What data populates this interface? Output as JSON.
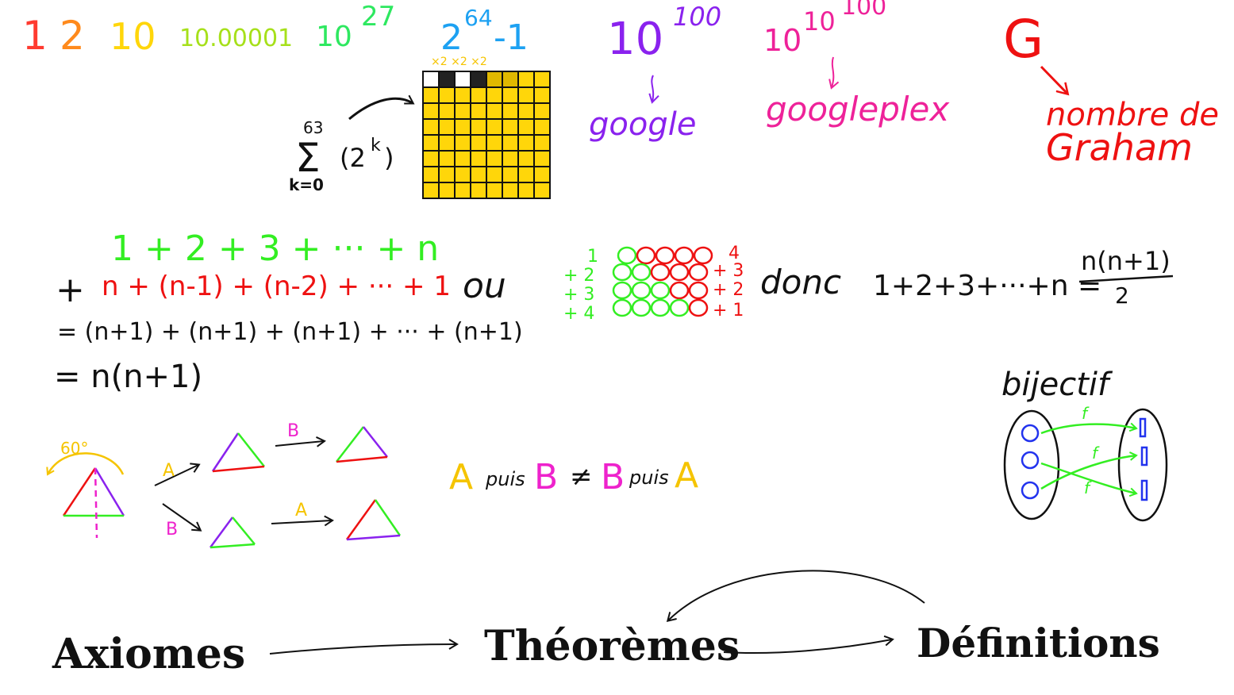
{
  "numbers": {
    "n1": "1",
    "n2": "2",
    "n3": "10",
    "n4": "10.00001",
    "n5_base": "10",
    "n5_exp": "27",
    "n6_base": "2",
    "n6_exp": "64",
    "n6_tail": "-1",
    "n7_base": "10",
    "n7_exp": "100",
    "n8_base": "10",
    "n8_exp1": "10",
    "n8_exp2": "100",
    "n9": "G"
  },
  "labels": {
    "google": "google",
    "googleplex": "googleplex",
    "graham_line1": "nombre de",
    "graham_line2": "Graham",
    "chessboard_marks": "×2 ×2 ×2"
  },
  "sum": {
    "upper": "63",
    "sigma": "Σ",
    "lower": "k=0",
    "term_base": "(2",
    "term_exp": "k",
    "term_close": ")"
  },
  "gauss": {
    "line1": "1 + 2 + 3 + ··· + n",
    "line2_plus": "+",
    "line2": "n + (n-1) + (n-2) + ··· + 1",
    "line3": "= (n+1) + (n+1) + (n+1) + ··· + (n+1)",
    "line4": "= n(n+1)",
    "ou": "ou",
    "row_labels_left": [
      "1",
      "+ 2",
      "+ 3",
      "+ 4"
    ],
    "row_labels_right": [
      "4",
      "+ 3",
      "+ 2",
      "+ 1"
    ],
    "donc": "donc",
    "formula_lhs": "1+2+3+···+n =",
    "formula_num": "n(n+1)",
    "formula_den": "2"
  },
  "symmetry": {
    "angle": "60°",
    "label_a": "A",
    "label_b": "B",
    "statement": [
      "A",
      "puis",
      "B",
      "≠",
      "B",
      "puis",
      "A"
    ]
  },
  "bijection": {
    "title": "bijectif",
    "arrow_label": "f"
  },
  "hierarchy": {
    "axiomes": "Axiomes",
    "theoremes": "Théorèmes",
    "definitions": "Définitions"
  }
}
